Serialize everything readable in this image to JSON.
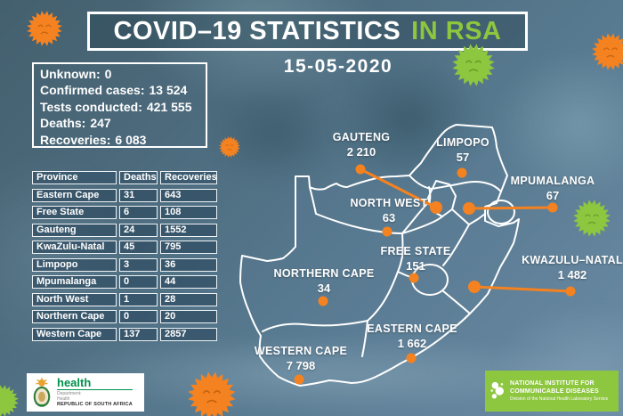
{
  "title": {
    "main": "COVID–19 STATISTICS",
    "highlight": "IN RSA"
  },
  "date": "15-05-2020",
  "summary": {
    "items": [
      {
        "label": "Unknown:",
        "value": "0"
      },
      {
        "label": "Confirmed cases:",
        "value": "13 524"
      },
      {
        "label": "Tests conducted:",
        "value": "421 555"
      },
      {
        "label": "Deaths:",
        "value": "247"
      },
      {
        "label": "Recoveries:",
        "value": "6 083"
      }
    ]
  },
  "table": {
    "headers": [
      "Province",
      "Deaths",
      "Recoveries"
    ],
    "rows": [
      [
        "Eastern Cape",
        "31",
        "643"
      ],
      [
        "Free State",
        "6",
        "108"
      ],
      [
        "Gauteng",
        "24",
        "1552"
      ],
      [
        "KwaZulu-Natal",
        "45",
        "795"
      ],
      [
        "Limpopo",
        "3",
        "36"
      ],
      [
        "Mpumalanga",
        "0",
        "44"
      ],
      [
        "North West",
        "1",
        "28"
      ],
      [
        "Northern Cape",
        "0",
        "20"
      ],
      [
        "Western Cape",
        "137",
        "2857"
      ]
    ]
  },
  "map": {
    "provinces": [
      {
        "name": "GAUTENG",
        "cases": "2 210"
      },
      {
        "name": "LIMPOPO",
        "cases": "57"
      },
      {
        "name": "MPUMALANGA",
        "cases": "67"
      },
      {
        "name": "NORTH WEST",
        "cases": "63"
      },
      {
        "name": "FREE STATE",
        "cases": "151"
      },
      {
        "name": "NORTHERN CAPE",
        "cases": "34"
      },
      {
        "name": "KWAZULU–NATAL",
        "cases": "1 482"
      },
      {
        "name": "EASTERN CAPE",
        "cases": "1 662"
      },
      {
        "name": "WESTERN CAPE",
        "cases": "7 798"
      }
    ]
  },
  "footer": {
    "health": {
      "name": "health",
      "dept1": "Department:",
      "dept2": "Health",
      "country": "REPUBLIC OF SOUTH AFRICA"
    },
    "nicd": {
      "line1": "NATIONAL INSTITUTE FOR",
      "line2": "COMMUNICABLE DISEASES",
      "line3": "Division of the National Health Laboratory Service"
    }
  },
  "colors": {
    "orange": "#f58220",
    "green": "#8dc63f",
    "map_line": "#ffffff"
  },
  "chart_data": {
    "type": "table",
    "title": "COVID–19 STATISTICS IN RSA",
    "date": "15-05-2020",
    "totals": {
      "unknown": 0,
      "confirmed_cases": 13524,
      "tests_conducted": 421555,
      "deaths": 247,
      "recoveries": 6083
    },
    "columns": [
      "Province",
      "Deaths",
      "Recoveries"
    ],
    "rows": [
      [
        "Eastern Cape",
        31,
        643
      ],
      [
        "Free State",
        6,
        108
      ],
      [
        "Gauteng",
        24,
        1552
      ],
      [
        "KwaZulu-Natal",
        45,
        795
      ],
      [
        "Limpopo",
        3,
        36
      ],
      [
        "Mpumalanga",
        0,
        44
      ],
      [
        "North West",
        1,
        28
      ],
      [
        "Northern Cape",
        0,
        20
      ],
      [
        "Western Cape",
        137,
        2857
      ]
    ],
    "map_cases": [
      {
        "province": "Gauteng",
        "cases": 2210
      },
      {
        "province": "Limpopo",
        "cases": 57
      },
      {
        "province": "Mpumalanga",
        "cases": 67
      },
      {
        "province": "North West",
        "cases": 63
      },
      {
        "province": "Free State",
        "cases": 151
      },
      {
        "province": "Northern Cape",
        "cases": 34
      },
      {
        "province": "KwaZulu-Natal",
        "cases": 1482
      },
      {
        "province": "Eastern Cape",
        "cases": 1662
      },
      {
        "province": "Western Cape",
        "cases": 7798
      }
    ]
  }
}
